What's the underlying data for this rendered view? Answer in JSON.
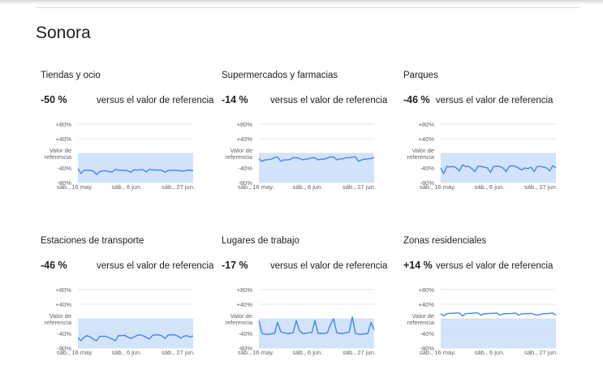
{
  "page": {
    "region_title": "Sonora"
  },
  "colors": {
    "line": "#4285f4",
    "band": "#d2e3fc",
    "grid": "#dadce0",
    "text": "#202124",
    "axis_text": "#5f6368"
  },
  "chart_data": [
    {
      "type": "line",
      "title": "Tiendas y ocio",
      "change": "-50 %",
      "change_label": "versus el valor de referencia",
      "y_ticks": [
        "+80%",
        "+40%",
        "Valor de referencia",
        "-40%",
        "-80%"
      ],
      "x_ticks": [
        "sáb., 16 may.",
        "sáb., 6 jun.",
        "sáb., 27 jun."
      ],
      "ylim": [
        -80,
        80
      ],
      "baseline_band": [
        -80,
        0
      ],
      "values": [
        -42,
        -55,
        -46,
        -47,
        -47,
        -49,
        -58,
        -50,
        -48,
        -48,
        -50,
        -51,
        -44,
        -46,
        -47,
        -47,
        -48,
        -52,
        -45,
        -46,
        -45,
        -45,
        -51,
        -44,
        -45,
        -46,
        -46,
        -47,
        -52,
        -47,
        -47,
        -46,
        -47,
        -48,
        -49,
        -46,
        -46,
        -48
      ]
    },
    {
      "type": "line",
      "title": "Supermercados y farmacias",
      "change": "-14 %",
      "change_label": "versus el valor de referencia",
      "y_ticks": [
        "+80%",
        "+40%",
        "Valor de referencia",
        "-40%",
        "-80%"
      ],
      "x_ticks": [
        "sáb., 16 may.",
        "sáb., 6 jun.",
        "sáb., 27 jun."
      ],
      "ylim": [
        -80,
        80
      ],
      "baseline_band": [
        -80,
        0
      ],
      "values": [
        -15,
        -22,
        -18,
        -17,
        -16,
        -12,
        -10,
        -22,
        -18,
        -18,
        -17,
        -12,
        -12,
        -14,
        -18,
        -16,
        -15,
        -12,
        -12,
        -18,
        -16,
        -16,
        -13,
        -10,
        -10,
        -18,
        -15,
        -15,
        -12,
        -12,
        -10,
        -10,
        -22,
        -18,
        -16,
        -15,
        -14,
        -11
      ]
    },
    {
      "type": "line",
      "title": "Parques",
      "change": "-46 %",
      "change_label": "versus el valor de referencia",
      "y_ticks": [
        "+80%",
        "+40%",
        "Valor de referencia",
        "-40%",
        "-80%"
      ],
      "x_ticks": [
        "sáb., 16 may.",
        "sáb., 6 jun.",
        "sáb., 27 jun."
      ],
      "ylim": [
        -80,
        80
      ],
      "baseline_band": [
        -80,
        0
      ],
      "values": [
        -40,
        -55,
        -36,
        -37,
        -36,
        -40,
        -48,
        -32,
        -36,
        -36,
        -42,
        -50,
        -35,
        -36,
        -38,
        -40,
        -52,
        -36,
        -35,
        -36,
        -40,
        -50,
        -36,
        -34,
        -36,
        -40,
        -46,
        -40,
        -42,
        -38,
        -50,
        -36,
        -36,
        -38,
        -40,
        -48,
        -34,
        -40
      ]
    },
    {
      "type": "line",
      "title": "Estaciones de transporte",
      "change": "-46 %",
      "change_label": "versus el valor de referencia",
      "y_ticks": [
        "+80%",
        "+40%",
        "Valor de referencia",
        "-40%",
        "-80%"
      ],
      "x_ticks": [
        "sáb., 16 may.",
        "sáb., 6 jun.",
        "sáb., 27 jun."
      ],
      "ylim": [
        -80,
        80
      ],
      "baseline_band": [
        -80,
        0
      ],
      "values": [
        -52,
        -60,
        -50,
        -46,
        -50,
        -56,
        -60,
        -48,
        -48,
        -48,
        -52,
        -55,
        -60,
        -46,
        -46,
        -45,
        -50,
        -54,
        -50,
        -45,
        -44,
        -47,
        -51,
        -55,
        -45,
        -44,
        -44,
        -47,
        -54,
        -44,
        -44,
        -44,
        -47,
        -53,
        -48,
        -46,
        -50,
        -47
      ]
    },
    {
      "type": "line",
      "title": "Lugares de trabajo",
      "change": "-17 %",
      "change_label": "versus el valor de referencia",
      "y_ticks": [
        "+80%",
        "+40%",
        "Valor de referencia",
        "-40%",
        "-80%"
      ],
      "x_ticks": [
        "sáb., 16 may.",
        "sáb., 6 jun.",
        "sáb., 27 jun."
      ],
      "ylim": [
        -80,
        80
      ],
      "baseline_band": [
        -80,
        0
      ],
      "values": [
        -5,
        -40,
        -42,
        -43,
        -41,
        -40,
        -10,
        -35,
        -38,
        -40,
        -40,
        -38,
        -5,
        -32,
        -40,
        -40,
        -38,
        -38,
        -5,
        -40,
        -40,
        -40,
        -38,
        -15,
        0,
        -38,
        -40,
        -40,
        -38,
        -36,
        5,
        -40,
        -42,
        -42,
        -41,
        -40,
        -10,
        -30
      ]
    },
    {
      "type": "line",
      "title": "Zonas residenciales",
      "change": "+14 %",
      "change_label": "versus el valor de referencia",
      "y_ticks": [
        "+80%",
        "+40%",
        "Valor de referencia",
        "-40%",
        "-80%"
      ],
      "x_ticks": [
        "sáb., 16 may.",
        "sáb., 6 jun.",
        "sáb., 27 jun."
      ],
      "ylim": [
        -80,
        80
      ],
      "baseline_band": [
        -80,
        0
      ],
      "values": [
        14,
        8,
        14,
        15,
        15,
        16,
        16,
        8,
        14,
        15,
        15,
        16,
        16,
        10,
        14,
        14,
        15,
        15,
        16,
        10,
        13,
        14,
        14,
        15,
        16,
        10,
        14,
        14,
        14,
        15,
        12,
        10,
        12,
        14,
        14,
        15,
        16,
        10
      ]
    }
  ]
}
